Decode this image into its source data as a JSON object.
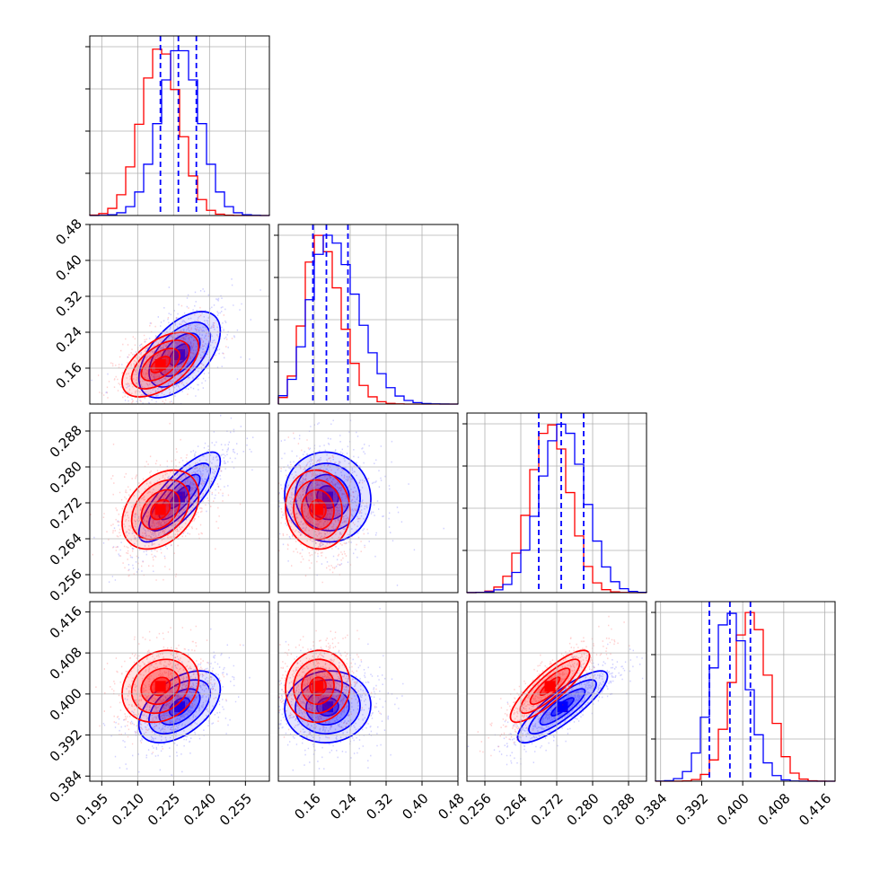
{
  "chart_data": {
    "type": "corner",
    "grid": true,
    "colors": {
      "red": "#ff0000",
      "blue": "#0000ff"
    },
    "params": [
      {
        "range": [
          0.19,
          0.265
        ],
        "ticks": [
          0.195,
          0.21,
          0.225,
          0.24,
          0.255
        ],
        "tick_labels": [
          "0.195",
          "0.210",
          "0.225",
          "0.240",
          "0.255"
        ],
        "blue": {
          "mean": 0.2275,
          "sd": 0.0085
        },
        "red": {
          "mean": 0.2195,
          "sd": 0.008
        },
        "quantiles_blue": [
          0.2195,
          0.227,
          0.2345
        ],
        "hist_max": 0.0032
      },
      {
        "range": [
          0.08,
          0.48
        ],
        "ticks": [
          0.16,
          0.24,
          0.32,
          0.4,
          0.48
        ],
        "tick_labels": [
          "0.16",
          "0.24",
          "0.32",
          "0.40",
          "0.48"
        ],
        "blue": {
          "mean": 0.19,
          "sd": 0.048
        },
        "red": {
          "mean": 0.168,
          "sd": 0.036
        },
        "quantiles_blue": [
          0.157,
          0.187,
          0.235
        ],
        "hist_max": 0.0052
      },
      {
        "range": [
          0.252,
          0.292
        ],
        "ticks": [
          0.256,
          0.264,
          0.272,
          0.28,
          0.288
        ],
        "tick_labels": [
          "0.256",
          "0.264",
          "0.272",
          "0.280",
          "0.288"
        ],
        "blue": {
          "mean": 0.2733,
          "sd": 0.005
        },
        "red": {
          "mean": 0.2705,
          "sd": 0.0044
        },
        "quantiles_blue": [
          0.268,
          0.273,
          0.278
        ],
        "hist_max": 0.0044
      },
      {
        "range": [
          0.383,
          0.418
        ],
        "ticks": [
          0.384,
          0.392,
          0.4,
          0.408,
          0.416
        ],
        "tick_labels": [
          "0.384",
          "0.392",
          "0.400",
          "0.408",
          "0.416"
        ],
        "blue": {
          "mean": 0.3975,
          "sd": 0.0035
        },
        "red": {
          "mean": 0.4015,
          "sd": 0.0035
        },
        "quantiles_blue": [
          0.3935,
          0.3975,
          0.4015
        ],
        "hist_max": 0.0053
      }
    ],
    "correlations": {
      "blue": {
        "1-0": 0.55,
        "2-0": 0.8,
        "3-0": 0.5,
        "2-1": -0.05,
        "3-1": 0.05,
        "3-2": 0.85
      },
      "red": {
        "1-0": 0.55,
        "2-0": 0.35,
        "3-0": 0.2,
        "2-1": -0.05,
        "3-1": 0.05,
        "3-2": 0.85
      }
    },
    "contour_levels_sigma": [
      0.5,
      1.0,
      1.5,
      2.0
    ]
  }
}
